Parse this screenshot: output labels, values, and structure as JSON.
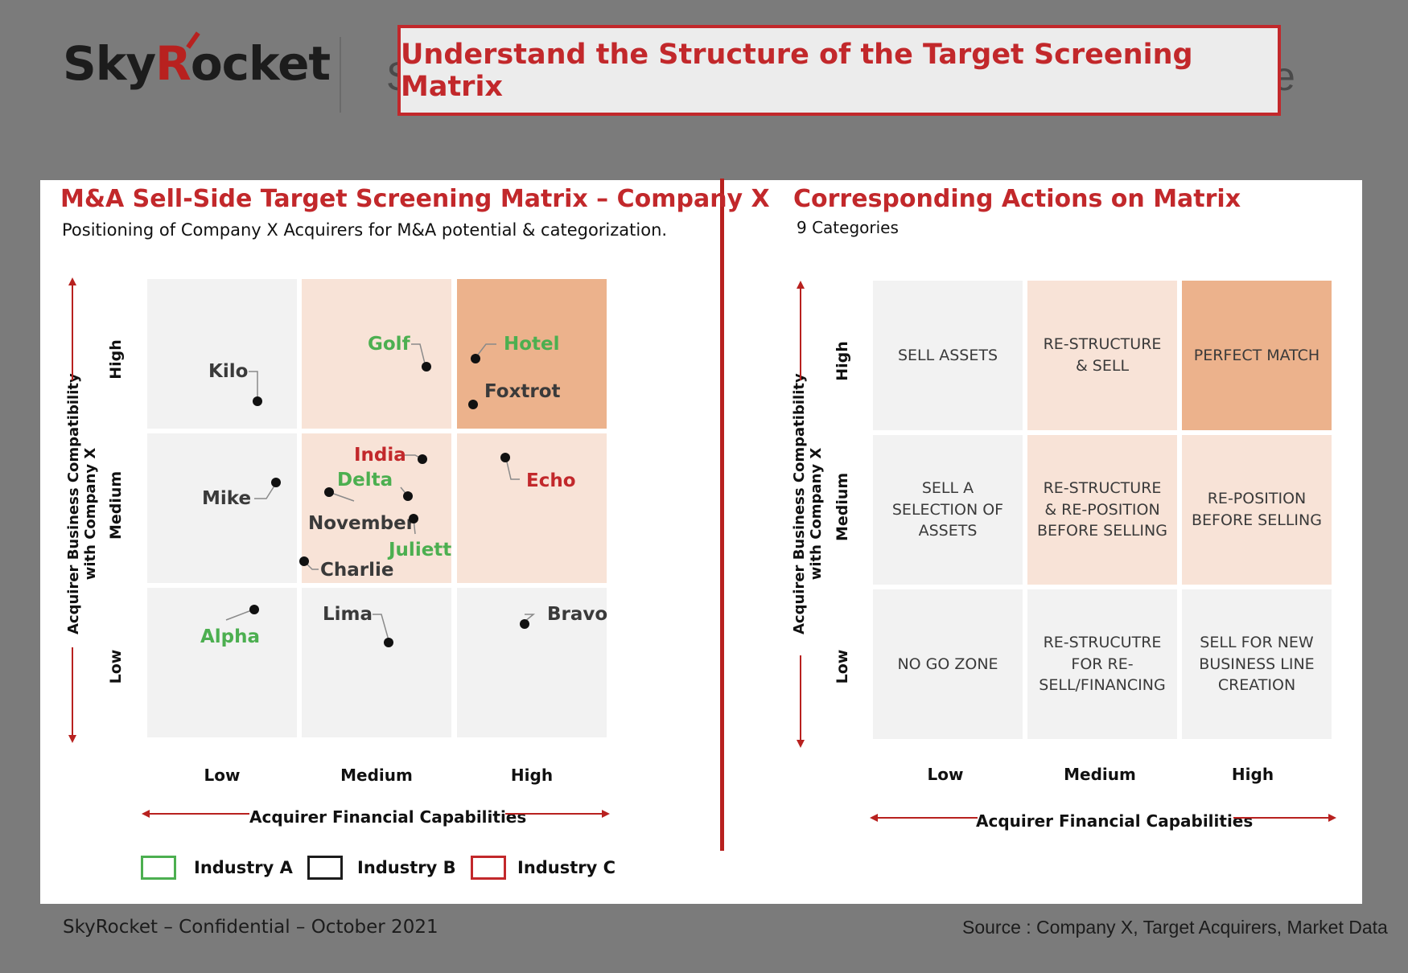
{
  "header": {
    "logo_pre": "Sky",
    "logo_r": "R",
    "logo_post": "ocket",
    "ghost_left": "S",
    "ghost_right": "e",
    "title": "Understand the Structure of the Target Screening Matrix"
  },
  "left": {
    "title": "M&A Sell-Side Target Screening Matrix – Company X",
    "subtitle": "Positioning of Company X Acquirers for M&A potential & categorization.",
    "y_axis_title_1": "Acquirer Business Compatibility",
    "y_axis_title_2": "with Company X",
    "y_levels": [
      "High",
      "Medium",
      "Low"
    ],
    "x_levels": [
      "Low",
      "Medium",
      "High"
    ],
    "x_axis_title": "Acquirer Financial Capabilities",
    "companies": [
      {
        "name": "Kilo",
        "industry": "B"
      },
      {
        "name": "Golf",
        "industry": "A"
      },
      {
        "name": "Hotel",
        "industry": "A"
      },
      {
        "name": "Foxtrot",
        "industry": "B"
      },
      {
        "name": "Mike",
        "industry": "B"
      },
      {
        "name": "India",
        "industry": "C"
      },
      {
        "name": "Delta",
        "industry": "A"
      },
      {
        "name": "November",
        "industry": "B"
      },
      {
        "name": "Juliett",
        "industry": "A"
      },
      {
        "name": "Charlie",
        "industry": "B"
      },
      {
        "name": "Echo",
        "industry": "C"
      },
      {
        "name": "Alpha",
        "industry": "A"
      },
      {
        "name": "Lima",
        "industry": "B"
      },
      {
        "name": "Bravo",
        "industry": "B"
      }
    ],
    "legend": [
      {
        "label": "Industry A",
        "color": "#4caf50"
      },
      {
        "label": "Industry B",
        "color": "#1c1c1c"
      },
      {
        "label": "Industry C",
        "color": "#c2282b"
      }
    ]
  },
  "right": {
    "title": "Corresponding Actions on Matrix",
    "subtitle": "9 Categories",
    "y_axis_title_1": "Acquirer  Business Compatibility",
    "y_axis_title_2": "with Company X",
    "y_levels": [
      "High",
      "Medium",
      "Low"
    ],
    "x_levels": [
      "Low",
      "Medium",
      "High"
    ],
    "x_axis_title": "Acquirer Financial Capabilities",
    "actions": [
      [
        "SELL ASSETS",
        "RE-STRUCTURE & SELL",
        "PERFECT MATCH"
      ],
      [
        "SELL A SELECTION OF ASSETS",
        "RE-STRUCTURE & RE-POSITION BEFORE SELLING",
        "RE-POSITION BEFORE SELLING"
      ],
      [
        "NO GO ZONE",
        "RE-STRUCUTRE FOR RE-SELL/FINANCING",
        "SELL FOR NEW BUSINESS LINE CREATION"
      ]
    ]
  },
  "footer": {
    "left": "SkyRocket – Confidential – October 2021",
    "right": "Source : Company X, Target Acquirers, Market Data"
  },
  "colors": {
    "accent_red": "#c2282b",
    "cell_grey": "#f2f2f2",
    "cell_peach": "#f8e3d7",
    "cell_orange": "#ecb28c"
  }
}
